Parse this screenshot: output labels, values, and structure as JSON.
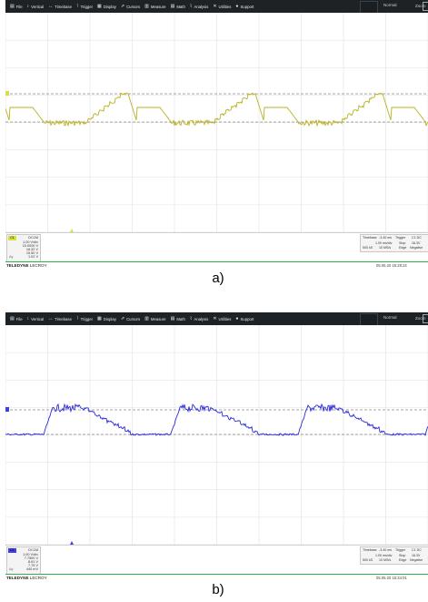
{
  "menu": [
    {
      "icon": "file-icon",
      "glyph": "▤",
      "label": "File"
    },
    {
      "icon": "vertical-icon",
      "glyph": "↕",
      "label": "Vertical"
    },
    {
      "icon": "timebase-icon",
      "glyph": "↔",
      "label": "Timebase"
    },
    {
      "icon": "trigger-icon",
      "glyph": "⊺",
      "label": "Trigger"
    },
    {
      "icon": "display-icon",
      "glyph": "▦",
      "label": "Display"
    },
    {
      "icon": "cursors-icon",
      "glyph": "⇗",
      "label": "Cursors"
    },
    {
      "icon": "measure-icon",
      "glyph": "▥",
      "label": "Measure"
    },
    {
      "icon": "math-icon",
      "glyph": "▤",
      "label": "Math"
    },
    {
      "icon": "analysis-icon",
      "glyph": "⌇",
      "label": "Analysis"
    },
    {
      "icon": "utilities-icon",
      "glyph": "✕",
      "label": "Utilities"
    },
    {
      "icon": "support-icon",
      "glyph": "●",
      "label": "Support"
    }
  ],
  "status_label": "Normal",
  "zoom_label": "Zoom",
  "brand_a": "TELEDYNE",
  "brand_b": "LECROY",
  "colors": {
    "trace_a": "#b8b020",
    "trace_b": "#2a2ad8",
    "grid": "#e0e0e0",
    "ref": "#8a8a8a",
    "marker_a": "#d8e040",
    "marker_b": "#4040e0"
  },
  "panel_a": {
    "channel": {
      "tag": "C1",
      "coupling": "DC1M",
      "scale": "1.00 V/div",
      "offset": "15.0000 V",
      "max": "18.32 V",
      "min": "15.50 V",
      "delta_label": "Δy",
      "delta": "1.02 V"
    },
    "timebase": {
      "label": "Timebase",
      "delay": "-3.40 ms",
      "per_div": "1.00 ms/div",
      "samples": "500 kS",
      "rate": "10 MS/s",
      "trigger_label": "Trigger",
      "trig_chan": "C1 DC",
      "stop": "Stop",
      "trig_level": "16.3V",
      "edge": "Edge",
      "slope": "Negative"
    },
    "timestamp": "05.05.20 15:28:24",
    "caption": "a)"
  },
  "panel_b": {
    "channel": {
      "tag": "C1",
      "coupling": "DC1M",
      "scale": "1.00 V/div",
      "offset": "7.7500 V",
      "max": "8.61 V",
      "min": "7.75 V",
      "delta_label": "Δy",
      "delta": "440 mV"
    },
    "timebase": {
      "label": "Timebase",
      "delay": "-3.40 ms",
      "per_div": "1.00 ms/div",
      "samples": "500 kS",
      "rate": "10 MS/s",
      "trigger_label": "Trigger",
      "trig_chan": "C1 DC",
      "stop": "Stop",
      "trig_level": "16.3V",
      "edge": "Edge",
      "slope": "Negative"
    },
    "timestamp": "05.05.20 15:34:01",
    "caption": "b)"
  }
}
